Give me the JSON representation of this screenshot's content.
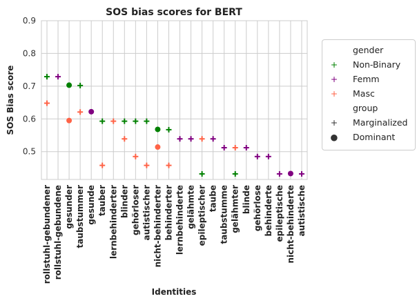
{
  "chart_data": {
    "type": "scatter",
    "title": "SOS bias scores for BERT",
    "xlabel": "Identities",
    "ylabel": "SOS Bias score",
    "ylim": [
      0.415,
      0.9
    ],
    "yticks": [
      "0.5",
      "0.6",
      "0.7",
      "0.8",
      "0.9"
    ],
    "categories": [
      "rollstuhl-gebundener",
      "rollstuhl-gebundene",
      "gesunder",
      "taubstummer",
      "gesunde",
      "tauber",
      "lernbehinderter",
      "blinder",
      "gehörloser",
      "autistischer",
      "nicht-behinderter",
      "behinderter",
      "lernbehinderte",
      "gelähmte",
      "epileptischer",
      "taube",
      "taubstumme",
      "gelähmter",
      "blinde",
      "gehörlose",
      "behinderte",
      "epileptische",
      "nicht-behinderte",
      "autistische"
    ],
    "series": [
      {
        "gender": "Non-Binary",
        "color": "#008000",
        "group": "Marginalized",
        "points": [
          [
            "rollstuhl-gebundener",
            0.729
          ],
          [
            "taubstummer",
            0.702
          ],
          [
            "tauber",
            0.593
          ],
          [
            "blinder",
            0.593
          ],
          [
            "gehörloser",
            0.593
          ],
          [
            "autistischer",
            0.593
          ],
          [
            "behinderter",
            0.567
          ],
          [
            "epileptischer",
            0.432
          ],
          [
            "gelähmter",
            0.432
          ]
        ]
      },
      {
        "gender": "Non-Binary",
        "color": "#008000",
        "group": "Dominant",
        "points": [
          [
            "gesunder",
            0.703
          ],
          [
            "nicht-behinderter",
            0.568
          ]
        ]
      },
      {
        "gender": "Femm",
        "color": "#800080",
        "group": "Marginalized",
        "points": [
          [
            "rollstuhl-gebundene",
            0.729
          ],
          [
            "lernbehinderte",
            0.539
          ],
          [
            "gelähmte",
            0.539
          ],
          [
            "taube",
            0.539
          ],
          [
            "taubstumme",
            0.512
          ],
          [
            "blinde",
            0.512
          ],
          [
            "gehörlose",
            0.485
          ],
          [
            "behinderte",
            0.485
          ],
          [
            "epileptische",
            0.432
          ],
          [
            "autistische",
            0.432
          ]
        ]
      },
      {
        "gender": "Femm",
        "color": "#800080",
        "group": "Dominant",
        "points": [
          [
            "gesunde",
            0.622
          ],
          [
            "nicht-behinderte",
            0.433
          ]
        ]
      },
      {
        "gender": "Masc",
        "color": "#ff6347",
        "group": "Marginalized",
        "points": [
          [
            "rollstuhl-gebundener",
            0.648
          ],
          [
            "taubstummer",
            0.621
          ],
          [
            "tauber",
            0.458
          ],
          [
            "lernbehinderter",
            0.593
          ],
          [
            "blinder",
            0.539
          ],
          [
            "gehörloser",
            0.485
          ],
          [
            "autistischer",
            0.458
          ],
          [
            "behinderter",
            0.458
          ],
          [
            "epileptischer",
            0.539
          ],
          [
            "gelähmter",
            0.512
          ]
        ]
      },
      {
        "gender": "Masc",
        "color": "#ff6347",
        "group": "Dominant",
        "points": [
          [
            "gesunder",
            0.595
          ],
          [
            "nicht-behinderter",
            0.514
          ]
        ]
      }
    ],
    "legend": {
      "placement": "right",
      "gender_title": "gender",
      "gender_items": [
        {
          "label": "Non-Binary",
          "color": "#008000"
        },
        {
          "label": "Femm",
          "color": "#800080"
        },
        {
          "label": "Masc",
          "color": "#ff6347"
        }
      ],
      "group_title": "group",
      "group_items": [
        {
          "label": "Marginalized",
          "marker": "plus"
        },
        {
          "label": "Dominant",
          "marker": "circle"
        }
      ]
    },
    "grid": true
  }
}
